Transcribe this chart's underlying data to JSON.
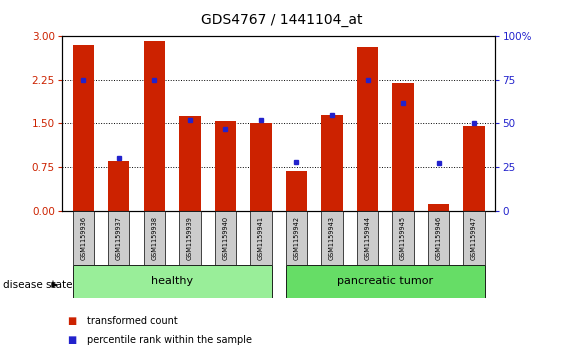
{
  "title": "GDS4767 / 1441104_at",
  "samples": [
    "GSM1159936",
    "GSM1159937",
    "GSM1159938",
    "GSM1159939",
    "GSM1159940",
    "GSM1159941",
    "GSM1159942",
    "GSM1159943",
    "GSM1159944",
    "GSM1159945",
    "GSM1159946",
    "GSM1159947"
  ],
  "transformed_count": [
    2.85,
    0.85,
    2.92,
    1.62,
    1.55,
    1.51,
    0.68,
    1.65,
    2.82,
    2.2,
    0.12,
    1.45
  ],
  "percentile_rank": [
    75,
    30,
    75,
    52,
    47,
    52,
    28,
    55,
    75,
    62,
    27,
    50
  ],
  "bar_color": "#cc2200",
  "dot_color": "#2222cc",
  "groups": [
    {
      "label": "healthy",
      "start": 0,
      "end": 6,
      "color": "#99ee99"
    },
    {
      "label": "pancreatic tumor",
      "start": 6,
      "end": 12,
      "color": "#66dd66"
    }
  ],
  "ylim_left": [
    0,
    3
  ],
  "ylim_right": [
    0,
    100
  ],
  "yticks_left": [
    0,
    0.75,
    1.5,
    2.25,
    3
  ],
  "yticks_right": [
    0,
    25,
    50,
    75,
    100
  ],
  "ylabel_left_color": "#cc2200",
  "ylabel_right_color": "#2222cc",
  "tick_label_bg": "#cccccc",
  "disease_state_label": "disease state",
  "legend_items": [
    {
      "label": "transformed count",
      "color": "#cc2200"
    },
    {
      "label": "percentile rank within the sample",
      "color": "#2222cc"
    }
  ]
}
